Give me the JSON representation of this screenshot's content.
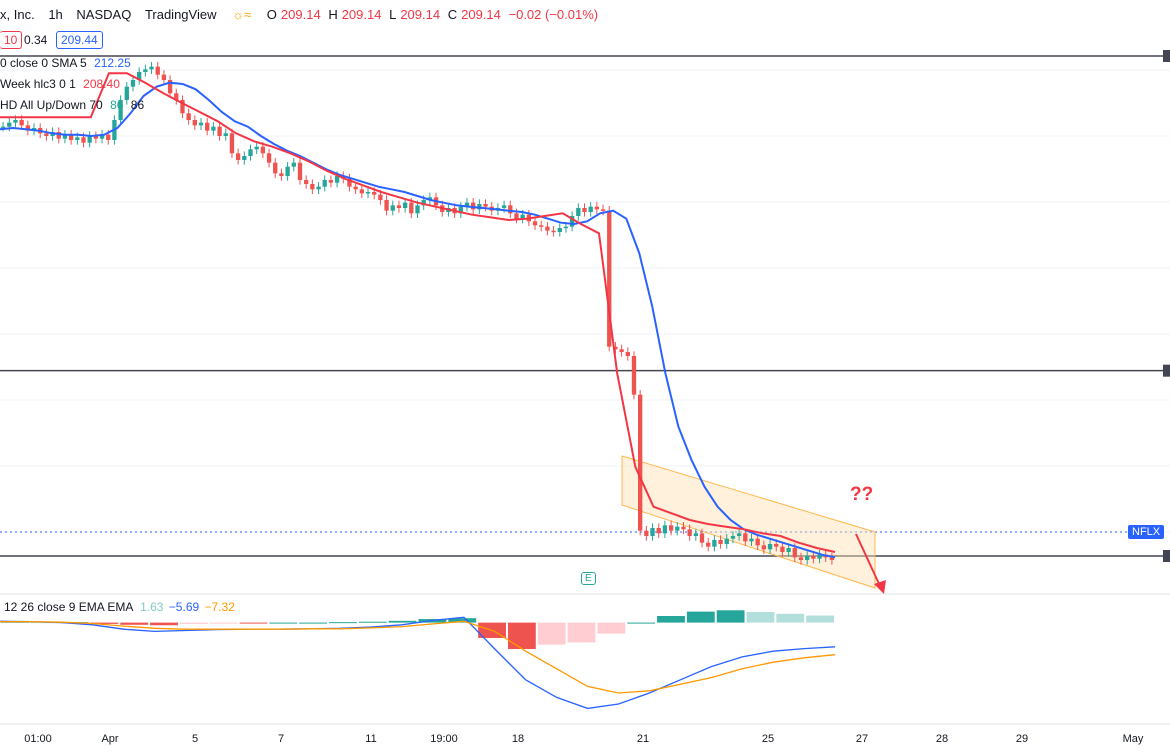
{
  "header": {
    "symbol": "x, Inc.",
    "interval": "1h",
    "exchange": "NASDAQ",
    "source": "TradingView",
    "ohlc": {
      "O": "209.14",
      "H": "209.14",
      "L": "209.14",
      "C": "209.14"
    },
    "change": "−0.02 (−0.01%)",
    "bid": "10",
    "spread": "0.34",
    "ask": "209.44"
  },
  "indicators": {
    "sma_label": "0 close 0 SMA 5",
    "sma_value": "212.25",
    "hlc_label": "Week hlc3 0 1",
    "hlc_value": "208.40",
    "vol_label": "HD All Up/Down 70",
    "vol_v1": "86",
    "vol_v2": "86",
    "macd_label": "12 26 close 9 EMA EMA",
    "macd_hist": "1.63",
    "macd_line": "−5.69",
    "macd_signal": "−7.32"
  },
  "annotations": {
    "question": "??",
    "ticker_tag": "NFLX",
    "earnings": "E"
  },
  "colors": {
    "bull": "#26a69a",
    "bear": "#ef5350",
    "sma": "#2962ff",
    "hlc": "#f23645",
    "macd": "#2962ff",
    "signal": "#ff9800",
    "channel": "#ffe0b2",
    "hline": "#434651"
  },
  "chart_data": {
    "type": "candlestick",
    "x_ticks": [
      "01:00",
      "Apr",
      "5",
      "7",
      "11",
      "19:00",
      "18",
      "21",
      "25",
      "27",
      "28",
      "29",
      "May"
    ],
    "horizontal_levels": [
      223.8,
      200.2,
      186.3
    ],
    "candles_closes": [
      218.5,
      218.8,
      219.0,
      218.6,
      218.2,
      218.4,
      218.0,
      217.8,
      218.1,
      217.6,
      217.9,
      217.5,
      217.7,
      217.3,
      217.8,
      217.6,
      217.9,
      217.5,
      219.0,
      220.5,
      221.5,
      222.0,
      222.6,
      222.8,
      223.0,
      222.4,
      222.0,
      221.0,
      220.5,
      219.5,
      219.0,
      218.6,
      218.8,
      218.2,
      218.5,
      217.8,
      218.0,
      216.5,
      216.0,
      216.3,
      216.8,
      217.0,
      216.5,
      215.8,
      215.0,
      214.8,
      215.5,
      215.8,
      214.5,
      214.2,
      213.8,
      214.0,
      214.5,
      214.3,
      214.8,
      214.6,
      214.0,
      213.8,
      213.5,
      213.6,
      213.4,
      213.0,
      212.2,
      212.6,
      212.4,
      212.8,
      212.0,
      212.6,
      213.0,
      213.2,
      212.6,
      212.1,
      212.4,
      212.0,
      212.5,
      212.8,
      212.3,
      212.7,
      212.5,
      212.2,
      212.4,
      212.6,
      212.0,
      211.6,
      211.9,
      211.4,
      211.1,
      211.0,
      210.7,
      210.6,
      210.9,
      211.0,
      211.8,
      212.4,
      212.1,
      212.5,
      212.3,
      212.2,
      202.0,
      201.8,
      201.6,
      201.3,
      198.4,
      188.2,
      187.8,
      188.4,
      188.0,
      188.6,
      188.2,
      188.5,
      188.3,
      187.8,
      188.0,
      187.3,
      187.0,
      187.5,
      187.2,
      187.6,
      187.8,
      188.0,
      187.4,
      187.6,
      187.1,
      186.8,
      187.2,
      187.0,
      186.6,
      186.9,
      186.2,
      186.0,
      186.3,
      186.1,
      186.4,
      186.2,
      186.0
    ],
    "sma_values": [
      218.3,
      218.4,
      218.3,
      218.2,
      218.0,
      217.9,
      217.9,
      217.8,
      217.9,
      218.4,
      219.5,
      220.8,
      221.5,
      221.8,
      221.7,
      221.3,
      220.5,
      219.6,
      218.9,
      218.5,
      217.8,
      217.2,
      216.7,
      216.3,
      215.8,
      215.3,
      214.9,
      214.6,
      214.3,
      214.0,
      213.8,
      213.6,
      213.3,
      213.0,
      212.8,
      212.6,
      212.5,
      212.4,
      212.3,
      212.2,
      212.1,
      211.9,
      211.6,
      211.3,
      211.2,
      211.4,
      212.0,
      212.2,
      211.6,
      209.0,
      205.0,
      200.0,
      196.0,
      193.5,
      191.5,
      190.0,
      189.0,
      188.3,
      187.9,
      187.6,
      187.3,
      187.0,
      186.7,
      186.4,
      186.2
    ],
    "hlc_values": [
      219.2,
      219.2,
      219.2,
      219.2,
      219.2,
      219.2,
      222.5,
      222.5,
      221.8,
      221.0,
      220.3,
      219.6,
      218.9,
      218.0,
      217.4,
      217.0,
      216.5,
      215.9,
      215.2,
      214.6,
      214.1,
      213.6,
      213.2,
      212.8,
      212.5,
      212.2,
      211.9,
      211.7,
      211.5,
      211.6,
      211.8,
      212.0,
      211.2,
      210.5,
      200.0,
      193.0,
      190.0,
      189.5,
      189.0,
      188.7,
      188.5,
      188.3,
      188.0,
      187.8,
      187.3,
      186.9,
      186.6
    ],
    "macd_line": [
      0.3,
      0.2,
      0.0,
      -0.5,
      -1.5,
      -2.0,
      -1.8,
      -1.6,
      -1.5,
      -1.5,
      -1.4,
      -1.3,
      -1.0,
      -0.5,
      0.5,
      1.2,
      -6.0,
      -13.0,
      -17.0,
      -19.5,
      -18.5,
      -16.0,
      -13.0,
      -10.0,
      -7.8,
      -6.5,
      -5.9,
      -5.5
    ],
    "macd_signal": [
      0.2,
      0.2,
      0.1,
      -0.2,
      -0.8,
      -1.3,
      -1.5,
      -1.5,
      -1.5,
      -1.5,
      -1.4,
      -1.4,
      -1.2,
      -0.9,
      -0.3,
      0.3,
      -2.0,
      -6.5,
      -10.5,
      -14.5,
      -16.0,
      -15.5,
      -14.0,
      -12.5,
      -10.5,
      -9.0,
      -8.0,
      -7.3
    ],
    "macd_hist": [
      0.2,
      0.1,
      0.1,
      -0.3,
      -0.5,
      -0.6,
      -0.3,
      -0.1,
      -0.2,
      0.0,
      0.0,
      0.1,
      0.2,
      0.4,
      0.8,
      1.0,
      -3.5,
      -6.0,
      -5.0,
      -4.5,
      -2.5,
      0.0,
      1.5,
      2.5,
      2.8,
      2.4,
      2.0,
      1.6
    ]
  }
}
